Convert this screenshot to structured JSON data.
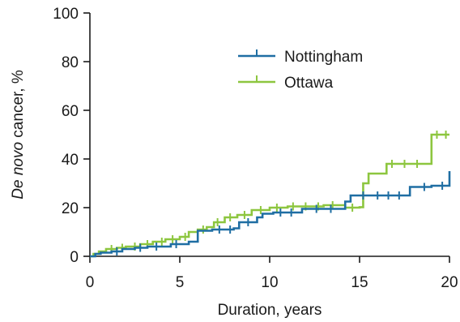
{
  "chart_data": {
    "type": "line",
    "title": "",
    "xlabel": "Duration, years",
    "ylabel_italic": "De novo",
    "ylabel_rest": " cancer, %",
    "xlim": [
      0,
      20
    ],
    "ylim": [
      0,
      100
    ],
    "xticks": [
      0,
      5,
      10,
      15,
      20
    ],
    "yticks": [
      0,
      20,
      40,
      60,
      80,
      100
    ],
    "grid": false,
    "legend_position": "top-right",
    "series": [
      {
        "name": "Nottingham",
        "color": "#1f6ea3",
        "steps": [
          [
            0,
            0
          ],
          [
            0.3,
            1
          ],
          [
            0.6,
            1.5
          ],
          [
            1.2,
            2
          ],
          [
            1.8,
            3
          ],
          [
            2.5,
            3.5
          ],
          [
            3.2,
            4
          ],
          [
            4.5,
            5
          ],
          [
            5.5,
            6
          ],
          [
            6,
            10.5
          ],
          [
            6.8,
            11
          ],
          [
            8,
            11.5
          ],
          [
            8.3,
            14
          ],
          [
            9.3,
            16
          ],
          [
            9.6,
            17.5
          ],
          [
            10.2,
            18
          ],
          [
            11.8,
            19.5
          ],
          [
            14.2,
            22.5
          ],
          [
            14.5,
            25
          ],
          [
            17.8,
            28.5
          ],
          [
            19,
            29
          ],
          [
            20,
            35
          ]
        ],
        "censor_x": [
          1.5,
          2.8,
          3.7,
          4.8,
          7.2,
          7.8,
          8.8,
          10.6,
          11.2,
          12.6,
          13.4,
          15.2,
          16.0,
          16.6,
          17.2,
          18.6,
          19.6
        ]
      },
      {
        "name": "Ottawa",
        "color": "#8dc63f",
        "steps": [
          [
            0,
            0
          ],
          [
            0.2,
            1
          ],
          [
            0.5,
            2
          ],
          [
            0.9,
            3
          ],
          [
            1.5,
            3.5
          ],
          [
            2,
            4
          ],
          [
            2.8,
            5
          ],
          [
            3.5,
            6
          ],
          [
            4.2,
            7
          ],
          [
            5,
            8
          ],
          [
            5.5,
            10
          ],
          [
            6,
            11
          ],
          [
            6.5,
            12
          ],
          [
            6.9,
            14
          ],
          [
            7.5,
            16
          ],
          [
            8.2,
            17
          ],
          [
            9,
            19
          ],
          [
            10,
            20
          ],
          [
            11,
            20.5
          ],
          [
            13,
            21
          ],
          [
            14.2,
            20
          ],
          [
            15,
            20.2
          ],
          [
            15.2,
            30
          ],
          [
            15.5,
            34
          ],
          [
            16.5,
            38
          ],
          [
            19,
            50
          ],
          [
            20,
            50
          ]
        ],
        "censor_x": [
          1.2,
          1.8,
          2.5,
          3.2,
          4.0,
          4.6,
          5.3,
          6.3,
          7.1,
          7.8,
          8.6,
          9.5,
          10.4,
          11.3,
          12.0,
          12.7,
          13.5,
          14.6,
          16.8,
          17.5,
          18.2,
          19.3,
          19.8
        ]
      }
    ]
  }
}
